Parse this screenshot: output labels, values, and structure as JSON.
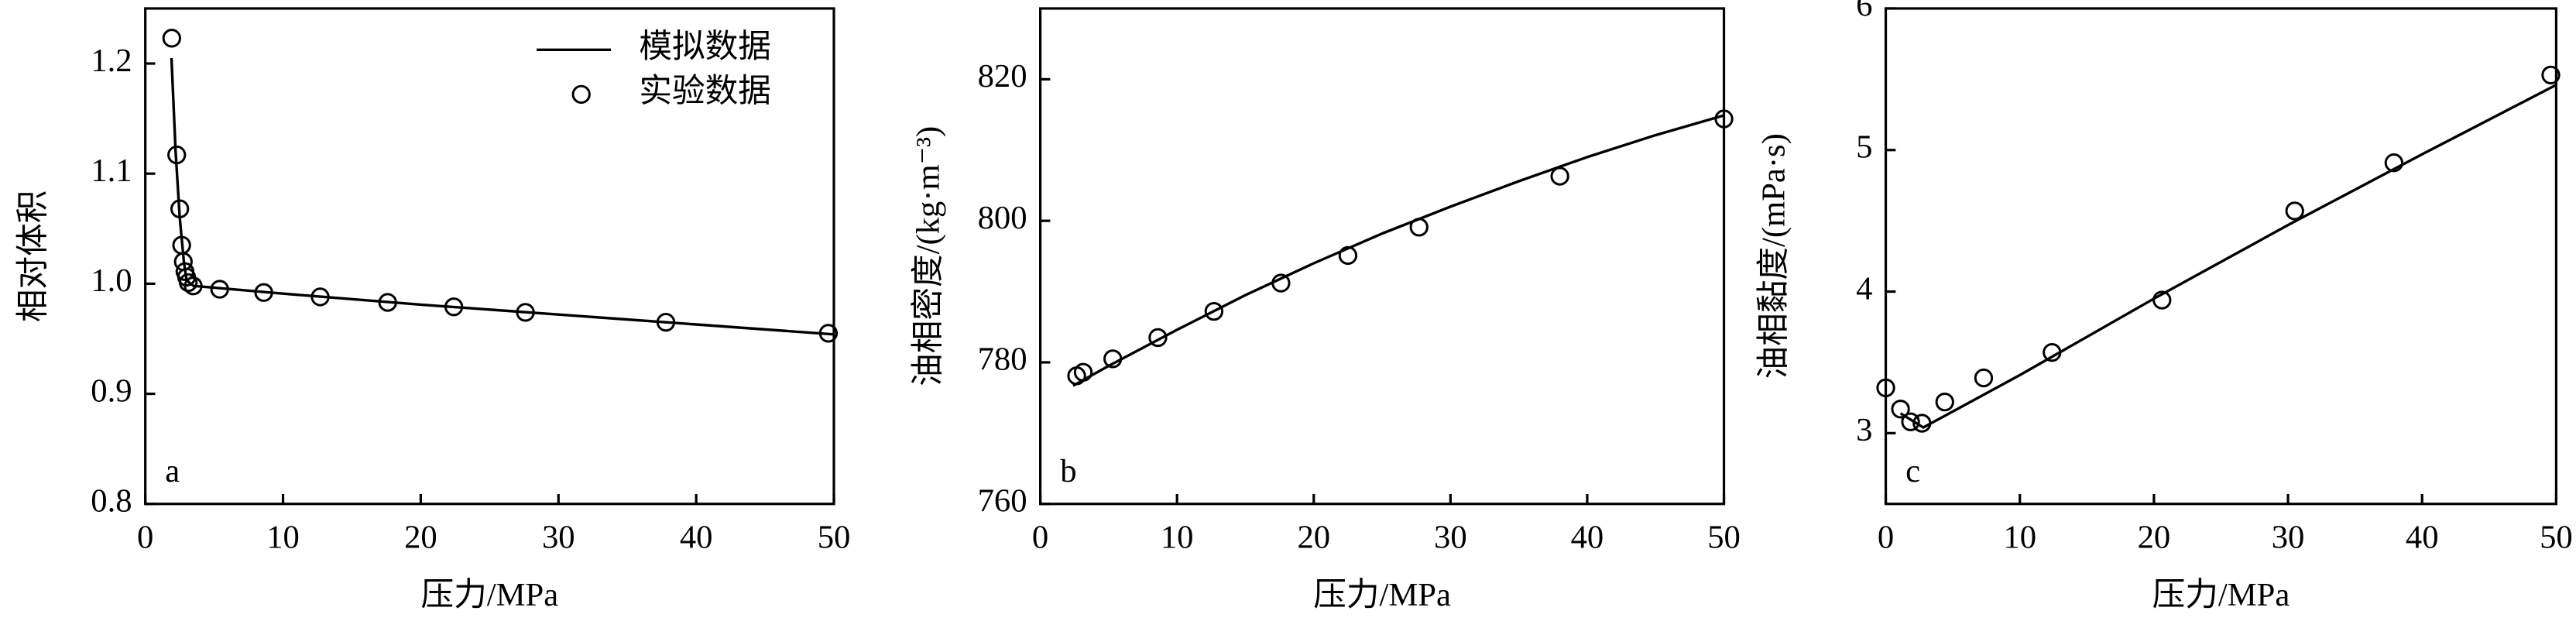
{
  "chart_data": [
    {
      "type": "line",
      "xlabel": "压力/MPa",
      "ylabel": "相对体积",
      "label": "a",
      "xlim": [
        0,
        50
      ],
      "ylim": [
        0.8,
        1.25
      ],
      "xticks": [
        0,
        10,
        20,
        30,
        40,
        50
      ],
      "yticks": [
        0.8,
        0.9,
        {
          "value": 1,
          "label": "1.0"
        },
        1.1,
        1.2
      ],
      "legend": "upper right",
      "series": [
        {
          "name": "模拟数据",
          "mode": "line",
          "color": "#000000",
          "x": [
            1.9,
            2.2,
            2.5,
            2.8,
            3.0,
            3.5,
            10,
            20,
            30,
            40,
            50
          ],
          "values": [
            1.205,
            1.12,
            1.06,
            1.02,
            1.003,
            0.998,
            0.991,
            0.981,
            0.972,
            0.963,
            0.954
          ]
        },
        {
          "name": "实验数据",
          "mode": "markers",
          "color": "#000000",
          "x": [
            1.92,
            2.28,
            2.5,
            2.64,
            2.76,
            2.88,
            3.0,
            3.12,
            3.48,
            5.4,
            8.6,
            12.7,
            17.6,
            22.4,
            27.6,
            37.8,
            49.6
          ],
          "values": [
            1.223,
            1.117,
            1.068,
            1.035,
            1.02,
            1.011,
            1.006,
            1.001,
            0.998,
            0.995,
            0.992,
            0.988,
            0.983,
            0.979,
            0.974,
            0.965,
            0.955
          ]
        }
      ]
    },
    {
      "type": "line",
      "xlabel": "压力/MPa",
      "ylabel": "油相密度/(kg·m⁻³)",
      "label": "b",
      "xlim": [
        0,
        50
      ],
      "ylim": [
        760,
        830
      ],
      "xticks": [
        0,
        10,
        20,
        30,
        40,
        50
      ],
      "yticks": [
        760,
        780,
        800,
        820
      ],
      "series": [
        {
          "mode": "line",
          "color": "#000000",
          "x": [
            2.4,
            5,
            10,
            15,
            20,
            25,
            30,
            35,
            40,
            45,
            50
          ],
          "values": [
            776.7,
            779.5,
            784.6,
            789.5,
            794.0,
            798.2,
            802.0,
            805.6,
            809.0,
            812.1,
            814.9
          ]
        },
        {
          "mode": "markers",
          "color": "#000000",
          "x": [
            2.66,
            3.14,
            5.3,
            8.6,
            12.7,
            17.6,
            22.5,
            27.7,
            38.0,
            50
          ],
          "values": [
            778.1,
            778.6,
            780.5,
            783.5,
            787.2,
            791.2,
            795.1,
            799.1,
            806.3,
            814.4
          ]
        }
      ]
    },
    {
      "type": "line",
      "xlabel": "压力/MPa",
      "ylabel": "油相黏度/(mPa·s)",
      "label": "c",
      "xlim": [
        0,
        50
      ],
      "ylim": [
        2.5,
        6
      ],
      "xticks": [
        0,
        10,
        20,
        30,
        40,
        50
      ],
      "yticks": [
        3,
        4,
        5,
        6
      ],
      "series": [
        {
          "mode": "line",
          "color": "#000000",
          "x": [
            1.1,
            2.8,
            10,
            20,
            30,
            40,
            50
          ],
          "values": [
            3.14,
            3.04,
            3.41,
            3.95,
            4.47,
            4.97,
            5.46
          ]
        },
        {
          "mode": "markers",
          "color": "#000000",
          "x": [
            0,
            1.1,
            1.85,
            2.7,
            4.4,
            7.3,
            12.4,
            20.6,
            30.5,
            37.9,
            49.6
          ],
          "values": [
            3.32,
            3.17,
            3.08,
            3.07,
            3.22,
            3.39,
            3.57,
            3.94,
            4.57,
            4.91,
            5.53
          ]
        }
      ]
    }
  ]
}
